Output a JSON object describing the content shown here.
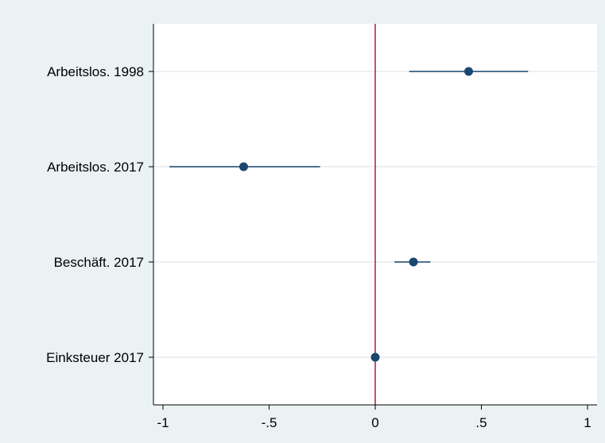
{
  "colors": {
    "outer_background": "#eaf2f3",
    "plot_background": "#ffffff",
    "gridline": "#e6ecee",
    "axis": "#000000",
    "marker": "#1a476f",
    "reference_line": "#b5163a"
  },
  "chart_data": {
    "type": "scatter",
    "subtype": "coefficient-plot",
    "orientation": "horizontal",
    "title": "",
    "xlabel": "",
    "ylabel": "",
    "xlim": [
      -1.05,
      1.05
    ],
    "x_ticks": [
      {
        "value": -1,
        "label": "-1"
      },
      {
        "value": -0.5,
        "label": "-.5"
      },
      {
        "value": 0,
        "label": "0"
      },
      {
        "value": 0.5,
        "label": ".5"
      },
      {
        "value": 1,
        "label": "1"
      }
    ],
    "reference_line": {
      "x": 0
    },
    "grid": "horizontal",
    "legend": "none",
    "series": [
      {
        "points": [
          {
            "label": "Arbeitslos. 1998",
            "estimate": 0.44,
            "ci_low": 0.16,
            "ci_high": 0.72
          },
          {
            "label": "Arbeitslos. 2017",
            "estimate": -0.62,
            "ci_low": -0.97,
            "ci_high": -0.26
          },
          {
            "label": "Beschäft. 2017",
            "estimate": 0.18,
            "ci_low": 0.09,
            "ci_high": 0.26
          },
          {
            "label": "Einksteuer 2017",
            "estimate": 0.0,
            "ci_low": 0.0,
            "ci_high": 0.0
          }
        ]
      }
    ]
  }
}
